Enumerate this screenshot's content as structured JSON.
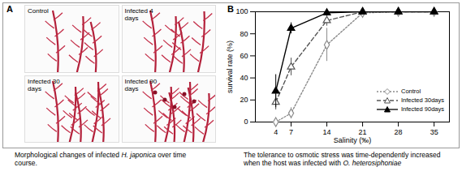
{
  "panel_a": {
    "label": "A",
    "images": [
      {
        "label": "Control"
      },
      {
        "label": "Infected 4 days"
      },
      {
        "label": "Infected 30 days"
      },
      {
        "label": "Infected 90 days"
      }
    ],
    "caption": [
      "Morphological changes of infected ",
      "H. japonica",
      " over time course."
    ]
  },
  "panel_b": {
    "label": "B",
    "caption": [
      "The tolerance to osmotic stress was time-dependently increased when the host was infected with ",
      "O. heterosiphoniae",
      ""
    ]
  },
  "chart_data": {
    "type": "line",
    "x_label": "Salinity (‰)",
    "y_label": "survival rate (%)",
    "x": [
      4,
      7,
      14,
      21,
      28,
      35
    ],
    "xlim": [
      0,
      38
    ],
    "xticks": [
      4,
      7,
      14,
      21,
      28,
      35
    ],
    "ylim": [
      0,
      100
    ],
    "yticks": [
      0,
      20,
      40,
      60,
      80,
      100
    ],
    "grid": false,
    "legend": "lower right",
    "series": [
      {
        "name": "Control",
        "color": "#8c8c8c",
        "marker": "diamond-open",
        "line_style": "dotted",
        "values": [
          0,
          8,
          70,
          99,
          100,
          100
        ],
        "errors": [
          0,
          5,
          15,
          1,
          0,
          0
        ]
      },
      {
        "name": "Infected 30days",
        "color": "#555555",
        "marker": "triangle-open",
        "line_style": "dashed",
        "values": [
          18,
          50,
          92,
          100,
          100,
          100
        ],
        "errors": [
          7,
          8,
          5,
          0,
          0,
          0
        ]
      },
      {
        "name": "Infected 90days",
        "color": "#000000",
        "marker": "triangle",
        "line_style": "solid",
        "values": [
          28,
          85,
          99,
          100,
          100,
          100
        ],
        "errors": [
          15,
          5,
          2,
          0,
          0,
          0
        ]
      }
    ]
  }
}
